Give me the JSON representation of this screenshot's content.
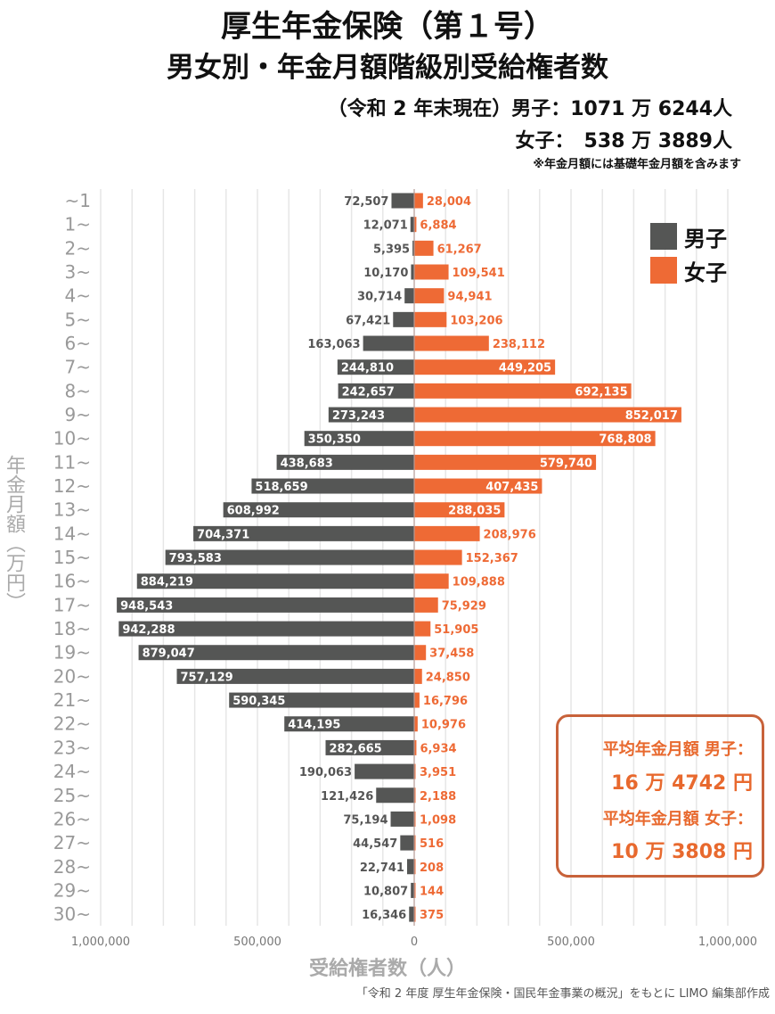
{
  "header": {
    "title1": "厚生年金保険（第１号）",
    "title2": "男女別・年金月額階級別受給権者数",
    "sub1": "（令和 2 年末現在）男子：1071 万 6244人",
    "sub2": "女子：　538 万 3889人",
    "note": "※年金月額には基礎年金月額を含みます"
  },
  "avg": {
    "male_label": "平均年金月額  男子：",
    "male_value": "16 万 4742 円",
    "female_label": "平均年金月額  女子：",
    "female_value": "10 万 3808 円"
  },
  "source": "「令和 2 年度 厚生年金保険・国民年金事業の概況」をもとに LIMO 編集部作成",
  "colors": {
    "male": "#555655",
    "female": "#ee6a35",
    "grid": "#e6e6e6"
  },
  "chart_data": {
    "type": "bar",
    "orientation": "horizontal-butterfly",
    "xlabel": "受給権者数（人）",
    "ylabel": "年金月額（万円）",
    "xlim": [
      -1000000,
      1000000
    ],
    "xticks": [
      "1,000,000",
      "500,000",
      "0",
      "500,000",
      "1,000,000"
    ],
    "grid": true,
    "legend": "top-right",
    "categories": [
      "~1",
      "1~",
      "2~",
      "3~",
      "4~",
      "5~",
      "6~",
      "7~",
      "8~",
      "9~",
      "10~",
      "11~",
      "12~",
      "13~",
      "14~",
      "15~",
      "16~",
      "17~",
      "18~",
      "19~",
      "20~",
      "21~",
      "22~",
      "23~",
      "24~",
      "25~",
      "26~",
      "27~",
      "28~",
      "29~",
      "30~"
    ],
    "series": [
      {
        "name": "男子",
        "values": [
          72507,
          12071,
          5395,
          10170,
          30714,
          67421,
          163063,
          244810,
          242657,
          273243,
          350350,
          438683,
          518659,
          608992,
          704371,
          793583,
          884219,
          948543,
          942288,
          879047,
          757129,
          590345,
          414195,
          282665,
          190063,
          121426,
          75194,
          44547,
          22741,
          10807,
          16346
        ]
      },
      {
        "name": "女子",
        "values": [
          28004,
          6884,
          61267,
          109541,
          94941,
          103206,
          238112,
          449205,
          692135,
          852017,
          768808,
          579740,
          407435,
          288035,
          208976,
          152367,
          109888,
          75929,
          51905,
          37458,
          24850,
          16796,
          10976,
          6934,
          3951,
          2188,
          1098,
          516,
          208,
          144,
          375
        ]
      }
    ]
  }
}
